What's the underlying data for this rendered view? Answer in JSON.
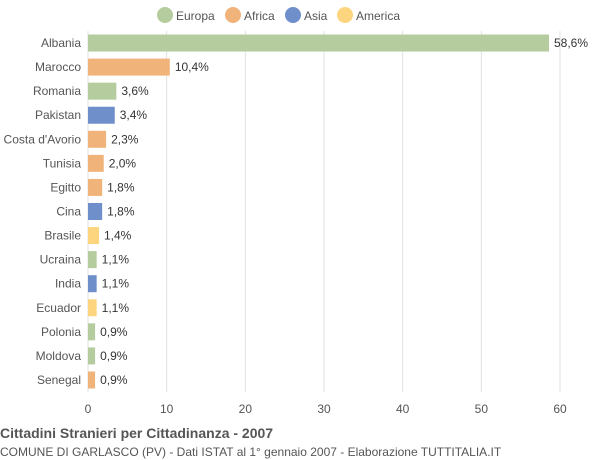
{
  "chart_data": {
    "type": "bar",
    "orientation": "horizontal",
    "title": "Cittadini Stranieri per Cittadinanza - 2007",
    "subtitle": "COMUNE DI GARLASCO (PV) - Dati ISTAT al 1° gennaio 2007 - Elaborazione TUTTITALIA.IT",
    "legend": {
      "position": "top",
      "items": [
        {
          "name": "Europa",
          "color": "#b5cc9e"
        },
        {
          "name": "Africa",
          "color": "#f0b47b"
        },
        {
          "name": "Asia",
          "color": "#6e8fca"
        },
        {
          "name": "America",
          "color": "#fdd57e"
        }
      ]
    },
    "categories": [
      "Albania",
      "Marocco",
      "Romania",
      "Pakistan",
      "Costa d'Avorio",
      "Tunisia",
      "Egitto",
      "Cina",
      "Brasile",
      "Ucraina",
      "India",
      "Ecuador",
      "Polonia",
      "Moldova",
      "Senegal"
    ],
    "values": [
      58.6,
      10.4,
      3.6,
      3.4,
      2.3,
      2.0,
      1.8,
      1.8,
      1.4,
      1.1,
      1.1,
      1.1,
      0.9,
      0.9,
      0.9
    ],
    "value_labels": [
      "58,6%",
      "10,4%",
      "3,6%",
      "3,4%",
      "2,3%",
      "2,0%",
      "1,8%",
      "1,8%",
      "1,4%",
      "1,1%",
      "1,1%",
      "1,1%",
      "0,9%",
      "0,9%",
      "0,9%"
    ],
    "groups": [
      "Europa",
      "Africa",
      "Europa",
      "Asia",
      "Africa",
      "Africa",
      "Africa",
      "Asia",
      "America",
      "Europa",
      "Asia",
      "America",
      "Europa",
      "Europa",
      "Africa"
    ],
    "xlim": [
      0,
      60
    ],
    "xticks": [
      0,
      10,
      20,
      30,
      40,
      50,
      60
    ],
    "grid": true
  }
}
